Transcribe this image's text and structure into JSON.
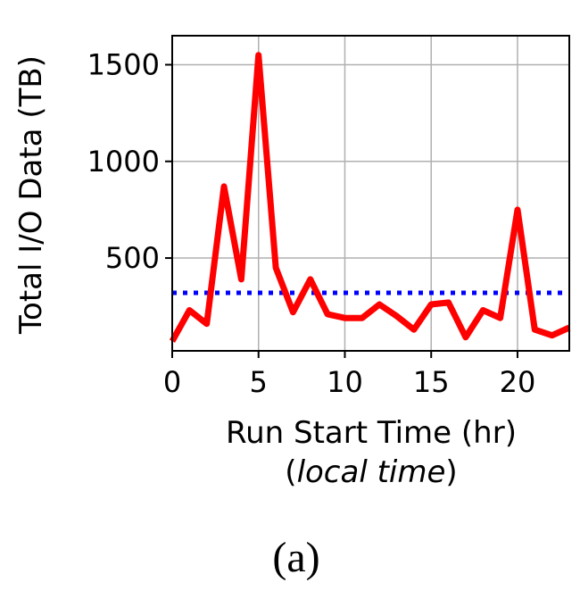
{
  "chart_data": {
    "type": "line",
    "xlabel": "Run Start Time (hr)",
    "xlabel_sub_open": "(",
    "xlabel_sub_italic": "local time",
    "xlabel_sub_close": ")",
    "ylabel": "Total I/O Data (TB)",
    "xlim": [
      0,
      23
    ],
    "ylim": [
      20,
      1650
    ],
    "x_ticks": [
      0,
      5,
      10,
      15,
      20
    ],
    "x_tick_labels": [
      "0",
      "5",
      "10",
      "15",
      "20"
    ],
    "y_ticks": [
      500,
      1000,
      1500
    ],
    "y_tick_labels": [
      "500",
      "1000",
      "1500"
    ],
    "grid": true,
    "series": [
      {
        "color": "#ff0000",
        "style": "solid",
        "x": [
          0,
          1,
          2,
          3,
          4,
          5,
          6,
          7,
          8,
          9,
          10,
          11,
          12,
          13,
          14,
          15,
          16,
          17,
          18,
          19,
          20,
          21,
          22,
          23
        ],
        "values": [
          70,
          230,
          160,
          870,
          390,
          1550,
          450,
          220,
          390,
          210,
          190,
          190,
          260,
          200,
          130,
          260,
          270,
          90,
          230,
          190,
          750,
          130,
          100,
          140
        ]
      }
    ],
    "reference_lines": [
      {
        "orientation": "horizontal",
        "value": 320,
        "color": "#0000ff",
        "style": "dotted"
      }
    ]
  },
  "caption": "(a)"
}
